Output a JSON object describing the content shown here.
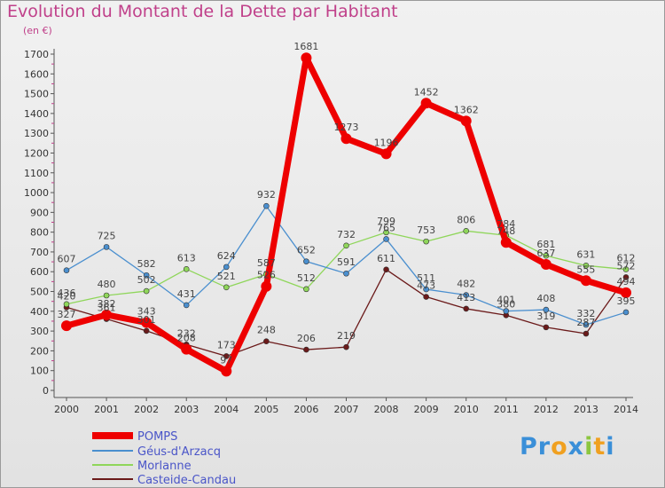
{
  "title": "Evolution du Montant de la Dette par Habitant",
  "unit": "(en €)",
  "logo": {
    "parts": [
      {
        "text": "Pr",
        "color": "#3a8fd8"
      },
      {
        "text": "o",
        "color": "#f0a020"
      },
      {
        "text": "x",
        "color": "#3a8fd8"
      },
      {
        "text": "i",
        "color": "#8cc63f"
      },
      {
        "text": "t",
        "color": "#f0a020"
      },
      {
        "text": "i",
        "color": "#3a8fd8"
      }
    ]
  },
  "chart_data": {
    "type": "line",
    "x": [
      2000,
      2001,
      2002,
      2003,
      2004,
      2005,
      2006,
      2007,
      2008,
      2009,
      2010,
      2011,
      2012,
      2013,
      2014
    ],
    "ylim": [
      0,
      1700
    ],
    "yticks": [
      0,
      100,
      200,
      300,
      400,
      500,
      600,
      700,
      800,
      900,
      1000,
      1100,
      1200,
      1300,
      1400,
      1500,
      1600,
      1700
    ],
    "grid": false,
    "legend_position": "bottom-left",
    "series": [
      {
        "name": "POMPS",
        "color": "#ee0000",
        "width": 7,
        "labelColor": "#444",
        "values": [
          327,
          382,
          343,
          208,
          97,
          526,
          1681,
          1273,
          1196,
          1452,
          1362,
          748,
          637,
          555,
          494
        ]
      },
      {
        "name": "Géus-d'Arzacq",
        "color": "#4a8fcf",
        "width": 1.3,
        "values": [
          607,
          725,
          582,
          431,
          624,
          932,
          652,
          591,
          765,
          511,
          482,
          401,
          408,
          332,
          395
        ]
      },
      {
        "name": "Morlanne",
        "color": "#8fd65a",
        "width": 1.3,
        "values": [
          436,
          480,
          502,
          613,
          521,
          587,
          512,
          732,
          799,
          753,
          806,
          784,
          681,
          631,
          612
        ]
      },
      {
        "name": "Casteide-Candau",
        "color": "#6b1a1a",
        "width": 1.3,
        "values": [
          420,
          361,
          301,
          232,
          173,
          248,
          206,
          219,
          611,
          473,
          413,
          380,
          319,
          287,
          572
        ]
      }
    ]
  }
}
